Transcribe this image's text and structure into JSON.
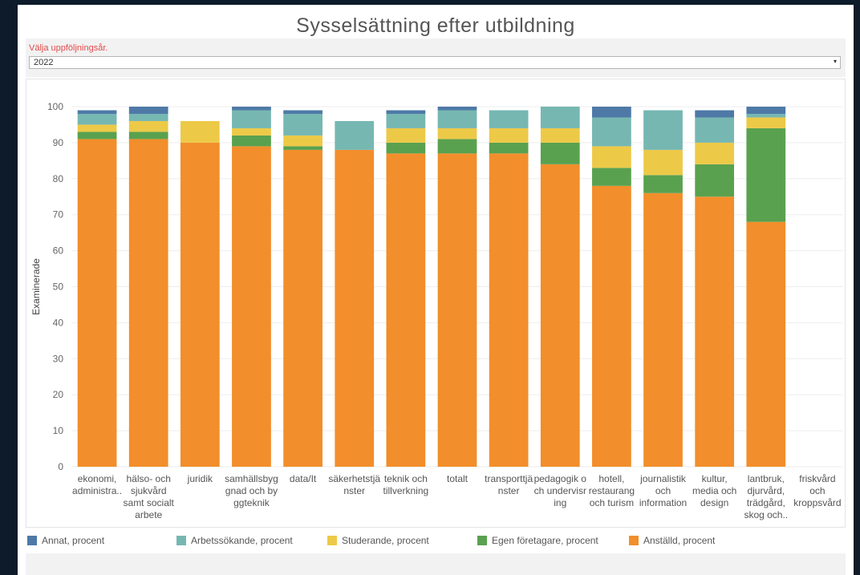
{
  "dashboard": {
    "title": "Sysselsättning efter utbildning",
    "filter": {
      "label": "Välja uppföljningsår.",
      "value": "2022",
      "arrow_icon": "▾"
    }
  },
  "chart_data": {
    "type": "bar",
    "stacked": true,
    "ylabel": "Examinerade",
    "ylim": [
      0,
      100
    ],
    "yticks": [
      0,
      10,
      20,
      30,
      40,
      50,
      60,
      70,
      80,
      90,
      100
    ],
    "grid": true,
    "legend_position": "bottom",
    "categories": [
      [
        "ekonomi,",
        "administra.."
      ],
      [
        "hälso- och",
        "sjukvård",
        "samt socialt",
        "arbete"
      ],
      [
        "juridik"
      ],
      [
        "samhällsbyg",
        "gnad och by",
        "ggteknik"
      ],
      [
        "data/It"
      ],
      [
        "säkerhetstjä",
        "nster"
      ],
      [
        "teknik och",
        "tillverkning"
      ],
      [
        "totalt"
      ],
      [
        "transporttjä",
        "nster"
      ],
      [
        "pedagogik o",
        "ch undervisr",
        "ing"
      ],
      [
        "hotell,",
        "restaurang",
        "och turism"
      ],
      [
        "journalistik",
        "och",
        "information"
      ],
      [
        "kultur,",
        "media och",
        "design"
      ],
      [
        "lantbruk,",
        "djurvård,",
        "trädgård,",
        "skog och.."
      ],
      [
        "friskvård",
        "och",
        "kroppsvård"
      ]
    ],
    "series": [
      {
        "name": "Anställd, procent",
        "color": "#f28e2b",
        "values": [
          91,
          91,
          90,
          89,
          88,
          88,
          87,
          87,
          87,
          84,
          78,
          76,
          75,
          68,
          null
        ]
      },
      {
        "name": "Egen företagare, procent",
        "color": "#59a14f",
        "values": [
          2,
          2,
          0,
          3,
          1,
          0,
          3,
          4,
          3,
          6,
          5,
          5,
          9,
          26,
          null
        ]
      },
      {
        "name": "Studerande, procent",
        "color": "#edc948",
        "values": [
          2,
          3,
          6,
          2,
          3,
          0,
          4,
          3,
          4,
          4,
          6,
          7,
          6,
          3,
          null
        ]
      },
      {
        "name": "Arbetssökande, procent",
        "color": "#76b7b2",
        "values": [
          3,
          2,
          0,
          5,
          6,
          8,
          4,
          5,
          5,
          6,
          8,
          11,
          7,
          1,
          null
        ]
      },
      {
        "name": "Annat, procent",
        "color": "#4e79a7",
        "values": [
          1,
          2,
          0,
          1,
          1,
          0,
          1,
          1,
          0,
          0,
          3,
          0,
          2,
          2,
          null
        ]
      }
    ]
  },
  "legend": {
    "items": [
      {
        "label": "Annat, procent",
        "color": "#4e79a7"
      },
      {
        "label": "Arbetssökande, procent",
        "color": "#76b7b2"
      },
      {
        "label": "Studerande, procent",
        "color": "#edc948"
      },
      {
        "label": "Egen företagare, procent",
        "color": "#59a14f"
      },
      {
        "label": "Anställd, procent",
        "color": "#f28e2b"
      }
    ]
  }
}
